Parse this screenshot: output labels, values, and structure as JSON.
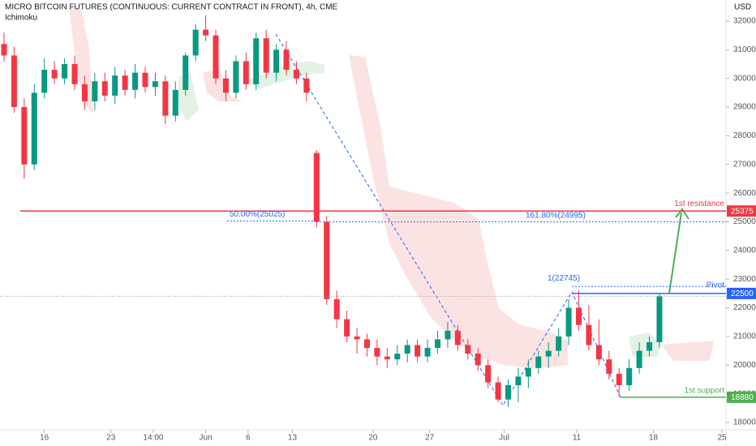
{
  "chart_data": {
    "type": "candlestick",
    "title": "MICRO BITCOIN FUTURES (CONTINUOUS: CURRENT CONTRACT IN FRONT), 4h, CME",
    "indicator": "Ichimoku",
    "y_axis_label": "USD",
    "up_color": "#089981",
    "down_color": "#f23645",
    "xlim": [
      0,
      180
    ],
    "ylim": [
      17745,
      32735
    ],
    "xticks": [
      {
        "value": 11,
        "label": "16"
      },
      {
        "value": 27.5,
        "label": "23"
      },
      {
        "value": 38,
        "label": "14:00"
      },
      {
        "value": 51,
        "label": "Jun"
      },
      {
        "value": 61.5,
        "label": "6"
      },
      {
        "value": 72.5,
        "label": "13"
      },
      {
        "value": 92.5,
        "label": "20"
      },
      {
        "value": 106.5,
        "label": "27"
      },
      {
        "value": 125,
        "label": "Jul"
      },
      {
        "value": 143,
        "label": "11"
      },
      {
        "value": 162,
        "label": "18"
      },
      {
        "value": 179,
        "label": "25"
      }
    ],
    "yticks": [
      18000,
      19000,
      20000,
      21000,
      22000,
      23000,
      24000,
      25000,
      26000,
      27000,
      28000,
      29000,
      30000,
      31000,
      32000
    ],
    "x": [
      1,
      3.5,
      6,
      8.5,
      11,
      13.5,
      16,
      18.5,
      21,
      23.5,
      26,
      28.5,
      31,
      33.5,
      36,
      38.5,
      41,
      43.5,
      46,
      48.5,
      51,
      53.5,
      56,
      58.5,
      61,
      63.5,
      66,
      68.5,
      71,
      73.5,
      76,
      78.5,
      81,
      83.5,
      86,
      88.5,
      91,
      93.5,
      96,
      98.5,
      101,
      103.5,
      106,
      108.5,
      111,
      113.5,
      116,
      118.5,
      121,
      123.5,
      126,
      128.5,
      131,
      133.5,
      136,
      138.5,
      141,
      143.5,
      146,
      148.5,
      151,
      153.5,
      156,
      158.5,
      161,
      163.5
    ],
    "open": [
      31200,
      30800,
      29000,
      27000,
      29500,
      30300,
      30000,
      30500,
      29800,
      29200,
      29900,
      29400,
      30100,
      29600,
      30200,
      29700,
      29900,
      28700,
      29600,
      30800,
      31700,
      31500,
      30000,
      29500,
      30600,
      29800,
      31400,
      30200,
      31000,
      30300,
      30000,
      27400,
      25000,
      22300,
      21600,
      21000,
      20900,
      20600,
      20300,
      20200,
      20400,
      20700,
      20300,
      20600,
      20900,
      21200,
      20700,
      20400,
      20000,
      19400,
      18800,
      19300,
      19600,
      19900,
      20300,
      20500,
      21000,
      22000,
      21400,
      20700,
      20200,
      19700,
      19300,
      19900,
      20500,
      20800
    ],
    "high": [
      31600,
      31100,
      29300,
      29800,
      30700,
      30600,
      30700,
      30800,
      30100,
      30200,
      30200,
      30400,
      30300,
      30500,
      30400,
      30200,
      30100,
      29900,
      30900,
      31900,
      32200,
      31700,
      30300,
      30800,
      30900,
      31600,
      31700,
      31200,
      31300,
      30600,
      30200,
      27500,
      25200,
      22600,
      21900,
      21300,
      21100,
      20900,
      20600,
      20700,
      20900,
      20900,
      20900,
      21200,
      21500,
      21400,
      20900,
      20600,
      20200,
      19600,
      19500,
      19900,
      20200,
      20500,
      20800,
      21300,
      22300,
      22600,
      22100,
      21600,
      20500,
      19900,
      20200,
      20800,
      21000,
      22500
    ],
    "low": [
      30600,
      28800,
      26500,
      26800,
      29300,
      29800,
      29800,
      29600,
      28900,
      28900,
      29200,
      29100,
      29400,
      29300,
      29500,
      29400,
      28400,
      28500,
      29400,
      30600,
      31300,
      29800,
      29200,
      29300,
      29600,
      29600,
      30000,
      29900,
      30100,
      29800,
      29200,
      24800,
      22100,
      21300,
      20800,
      20400,
      20300,
      20000,
      19900,
      20000,
      20100,
      20100,
      20100,
      20400,
      20600,
      20500,
      20200,
      19800,
      19200,
      18700,
      18550,
      18700,
      19200,
      19700,
      19900,
      20300,
      20700,
      21200,
      20500,
      20000,
      19500,
      18900,
      19100,
      19700,
      20300,
      20600
    ],
    "close": [
      30800,
      29000,
      27000,
      29500,
      30300,
      30000,
      30500,
      29800,
      29200,
      29900,
      29400,
      30100,
      29600,
      30200,
      29700,
      29900,
      28700,
      29600,
      30800,
      31700,
      31500,
      30000,
      29500,
      30600,
      29800,
      31400,
      30200,
      31000,
      30300,
      30000,
      29500,
      25000,
      22300,
      21600,
      21000,
      20900,
      20600,
      20300,
      20200,
      20400,
      20700,
      20300,
      20600,
      20900,
      21200,
      20700,
      20400,
      20000,
      19400,
      18800,
      19300,
      19600,
      19900,
      20300,
      20500,
      21000,
      22000,
      21400,
      20700,
      20200,
      19700,
      19300,
      19900,
      20500,
      20800,
      22400
    ],
    "levels": [
      {
        "label": "1st resistance",
        "value": 25375,
        "color": "#f23645"
      },
      {
        "label": "50.00%(25025)",
        "value": 25025,
        "color": "#2962ff"
      },
      {
        "label": "161.80%(24995)",
        "value": 24995,
        "color": "#2962ff"
      },
      {
        "label": "1(22745)",
        "value": 22745,
        "color": "#2962ff"
      },
      {
        "label": "Pivot",
        "value": 22500,
        "color": "#2962ff"
      },
      {
        "label": "1st support",
        "value": 18880,
        "color": "#4caf50"
      }
    ]
  }
}
